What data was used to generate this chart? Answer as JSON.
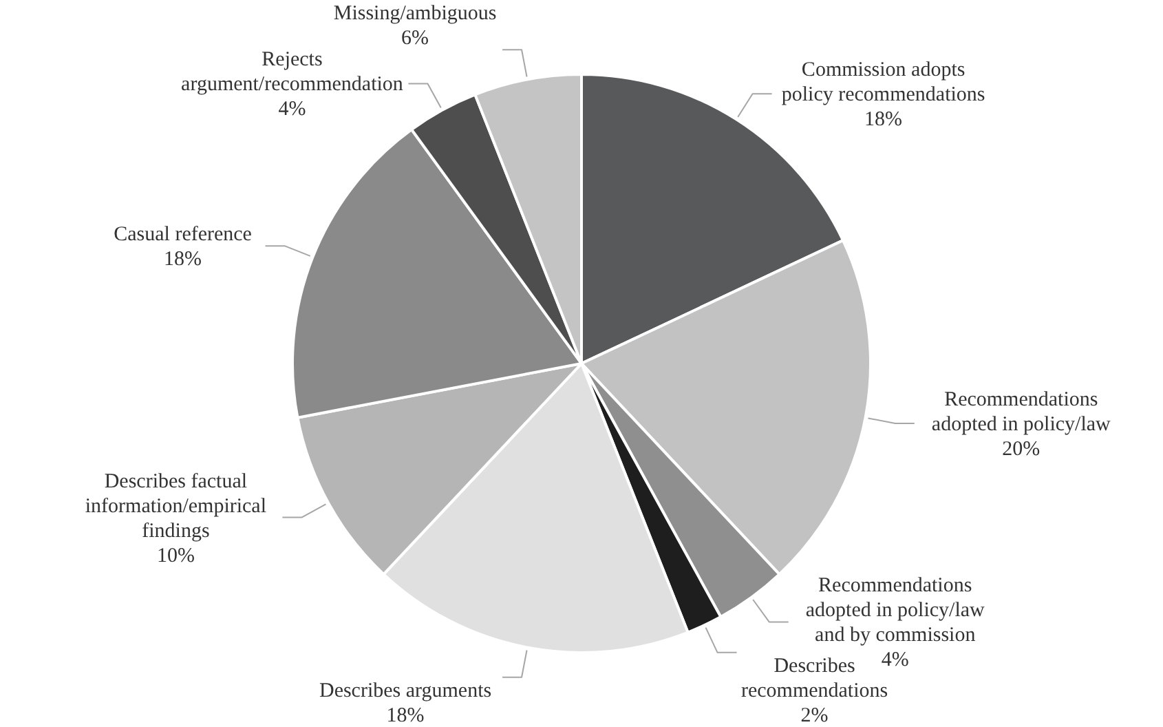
{
  "chart_data": {
    "type": "pie",
    "categories": [
      "Commission adopts policy recommendations",
      "Recommendations adopted in policy/law",
      "Recommendations adopted in policy/law and by commission",
      "Describes recommendations",
      "Describes arguments",
      "Describes factual information/empirical findings",
      "Casual reference",
      "Rejects argument/recommendation",
      "Missing/ambiguous"
    ],
    "values": [
      18,
      20,
      4,
      2,
      18,
      10,
      18,
      4,
      6
    ],
    "value_labels": [
      "18%",
      "20%",
      "4%",
      "2%",
      "18%",
      "10%",
      "18%",
      "4%",
      "6%"
    ],
    "colors": [
      "#58595b",
      "#c2c2c2",
      "#8f8f8f",
      "#1e1e1e",
      "#e0e0e0",
      "#b5b5b5",
      "#8a8a8a",
      "#4e4e4e",
      "#c4c4c4"
    ]
  }
}
